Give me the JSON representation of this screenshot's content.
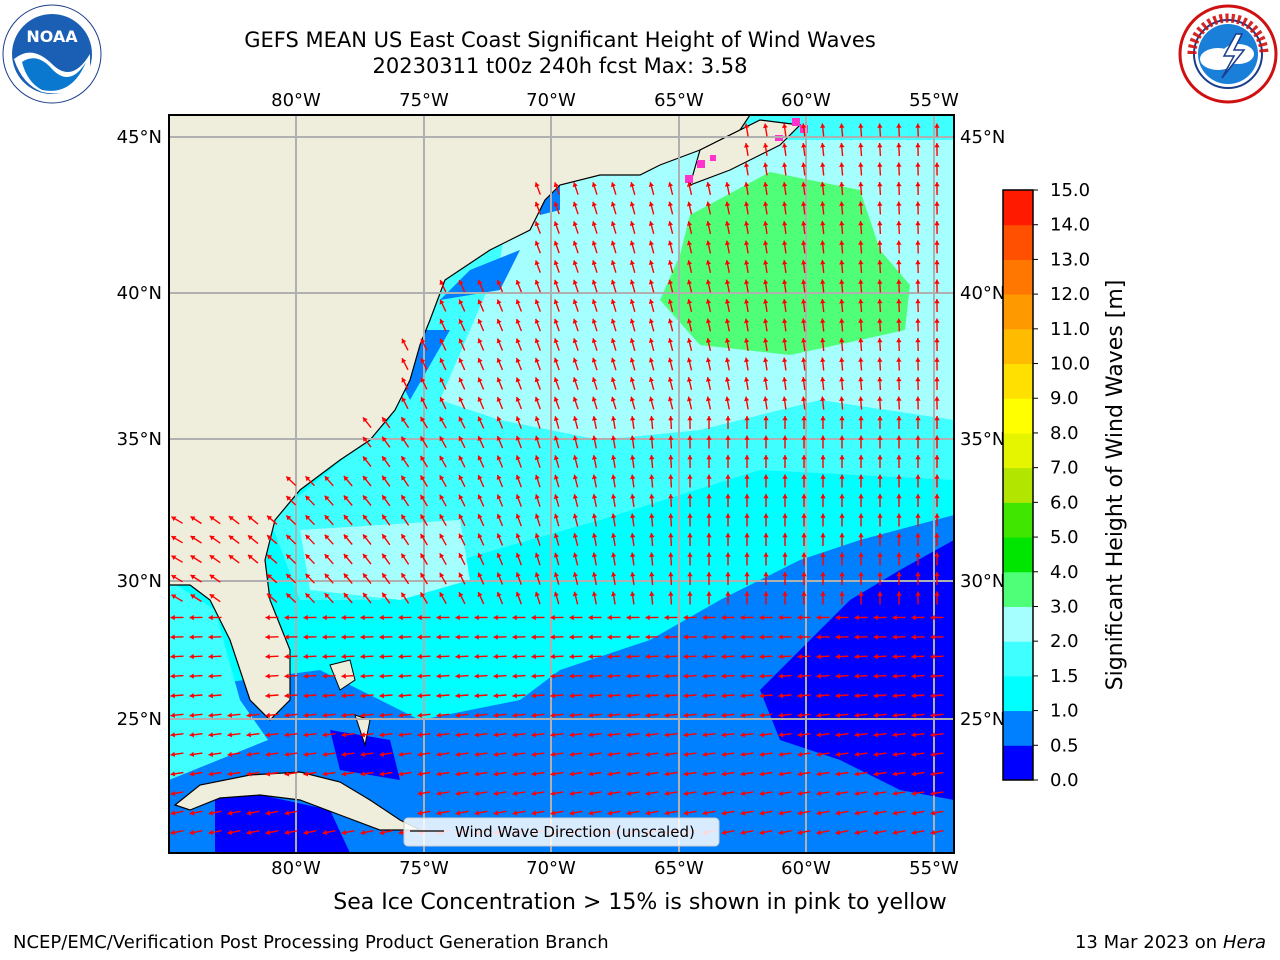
{
  "title": {
    "line1": "GEFS MEAN US East Coast Significant Height of Wind Waves",
    "line2": "20230311 t00z 240h fcst   Max: 3.58"
  },
  "logos": {
    "left": {
      "icon": "noaa-logo-icon",
      "text": "NOAA"
    },
    "right": {
      "icon": "national-weather-service-logo-icon"
    }
  },
  "map": {
    "lon_labels": [
      "80°W",
      "75°W",
      "70°W",
      "65°W",
      "60°W",
      "55°W"
    ],
    "lat_labels": [
      "45°N",
      "40°N",
      "35°N",
      "30°N",
      "25°N"
    ],
    "legend_label": "Wind Wave Direction (unscaled)",
    "max_value": 3.58
  },
  "colorbar": {
    "label": "Significant Height of Wind Waves [m]",
    "ticks": [
      "0.0",
      "0.5",
      "1.0",
      "1.5",
      "2.0",
      "3.0",
      "4.0",
      "5.0",
      "6.0",
      "7.0",
      "8.0",
      "9.0",
      "10.0",
      "11.0",
      "12.0",
      "13.0",
      "14.0",
      "15.0"
    ],
    "colors": [
      "#0000ff",
      "#007fff",
      "#00ffff",
      "#40ffff",
      "#a6ffff",
      "#50ff78",
      "#00e600",
      "#40e600",
      "#b2e600",
      "#e5f500",
      "#ffff00",
      "#ffe000",
      "#ffbb00",
      "#ff9900",
      "#ff7700",
      "#ff4f00",
      "#ff1a00"
    ]
  },
  "colors": {
    "land": "#efeedc",
    "arrow": "#ff0000",
    "grid": "#b0b0b0",
    "ice": "#ff33cc"
  },
  "footer": {
    "note": "Sea Ice Concentration > 15% is shown in pink to yellow",
    "credit": "NCEP/EMC/Verification Post Processing Product Generation Branch",
    "date": "13 Mar 2023 on",
    "machine": "Hera"
  }
}
